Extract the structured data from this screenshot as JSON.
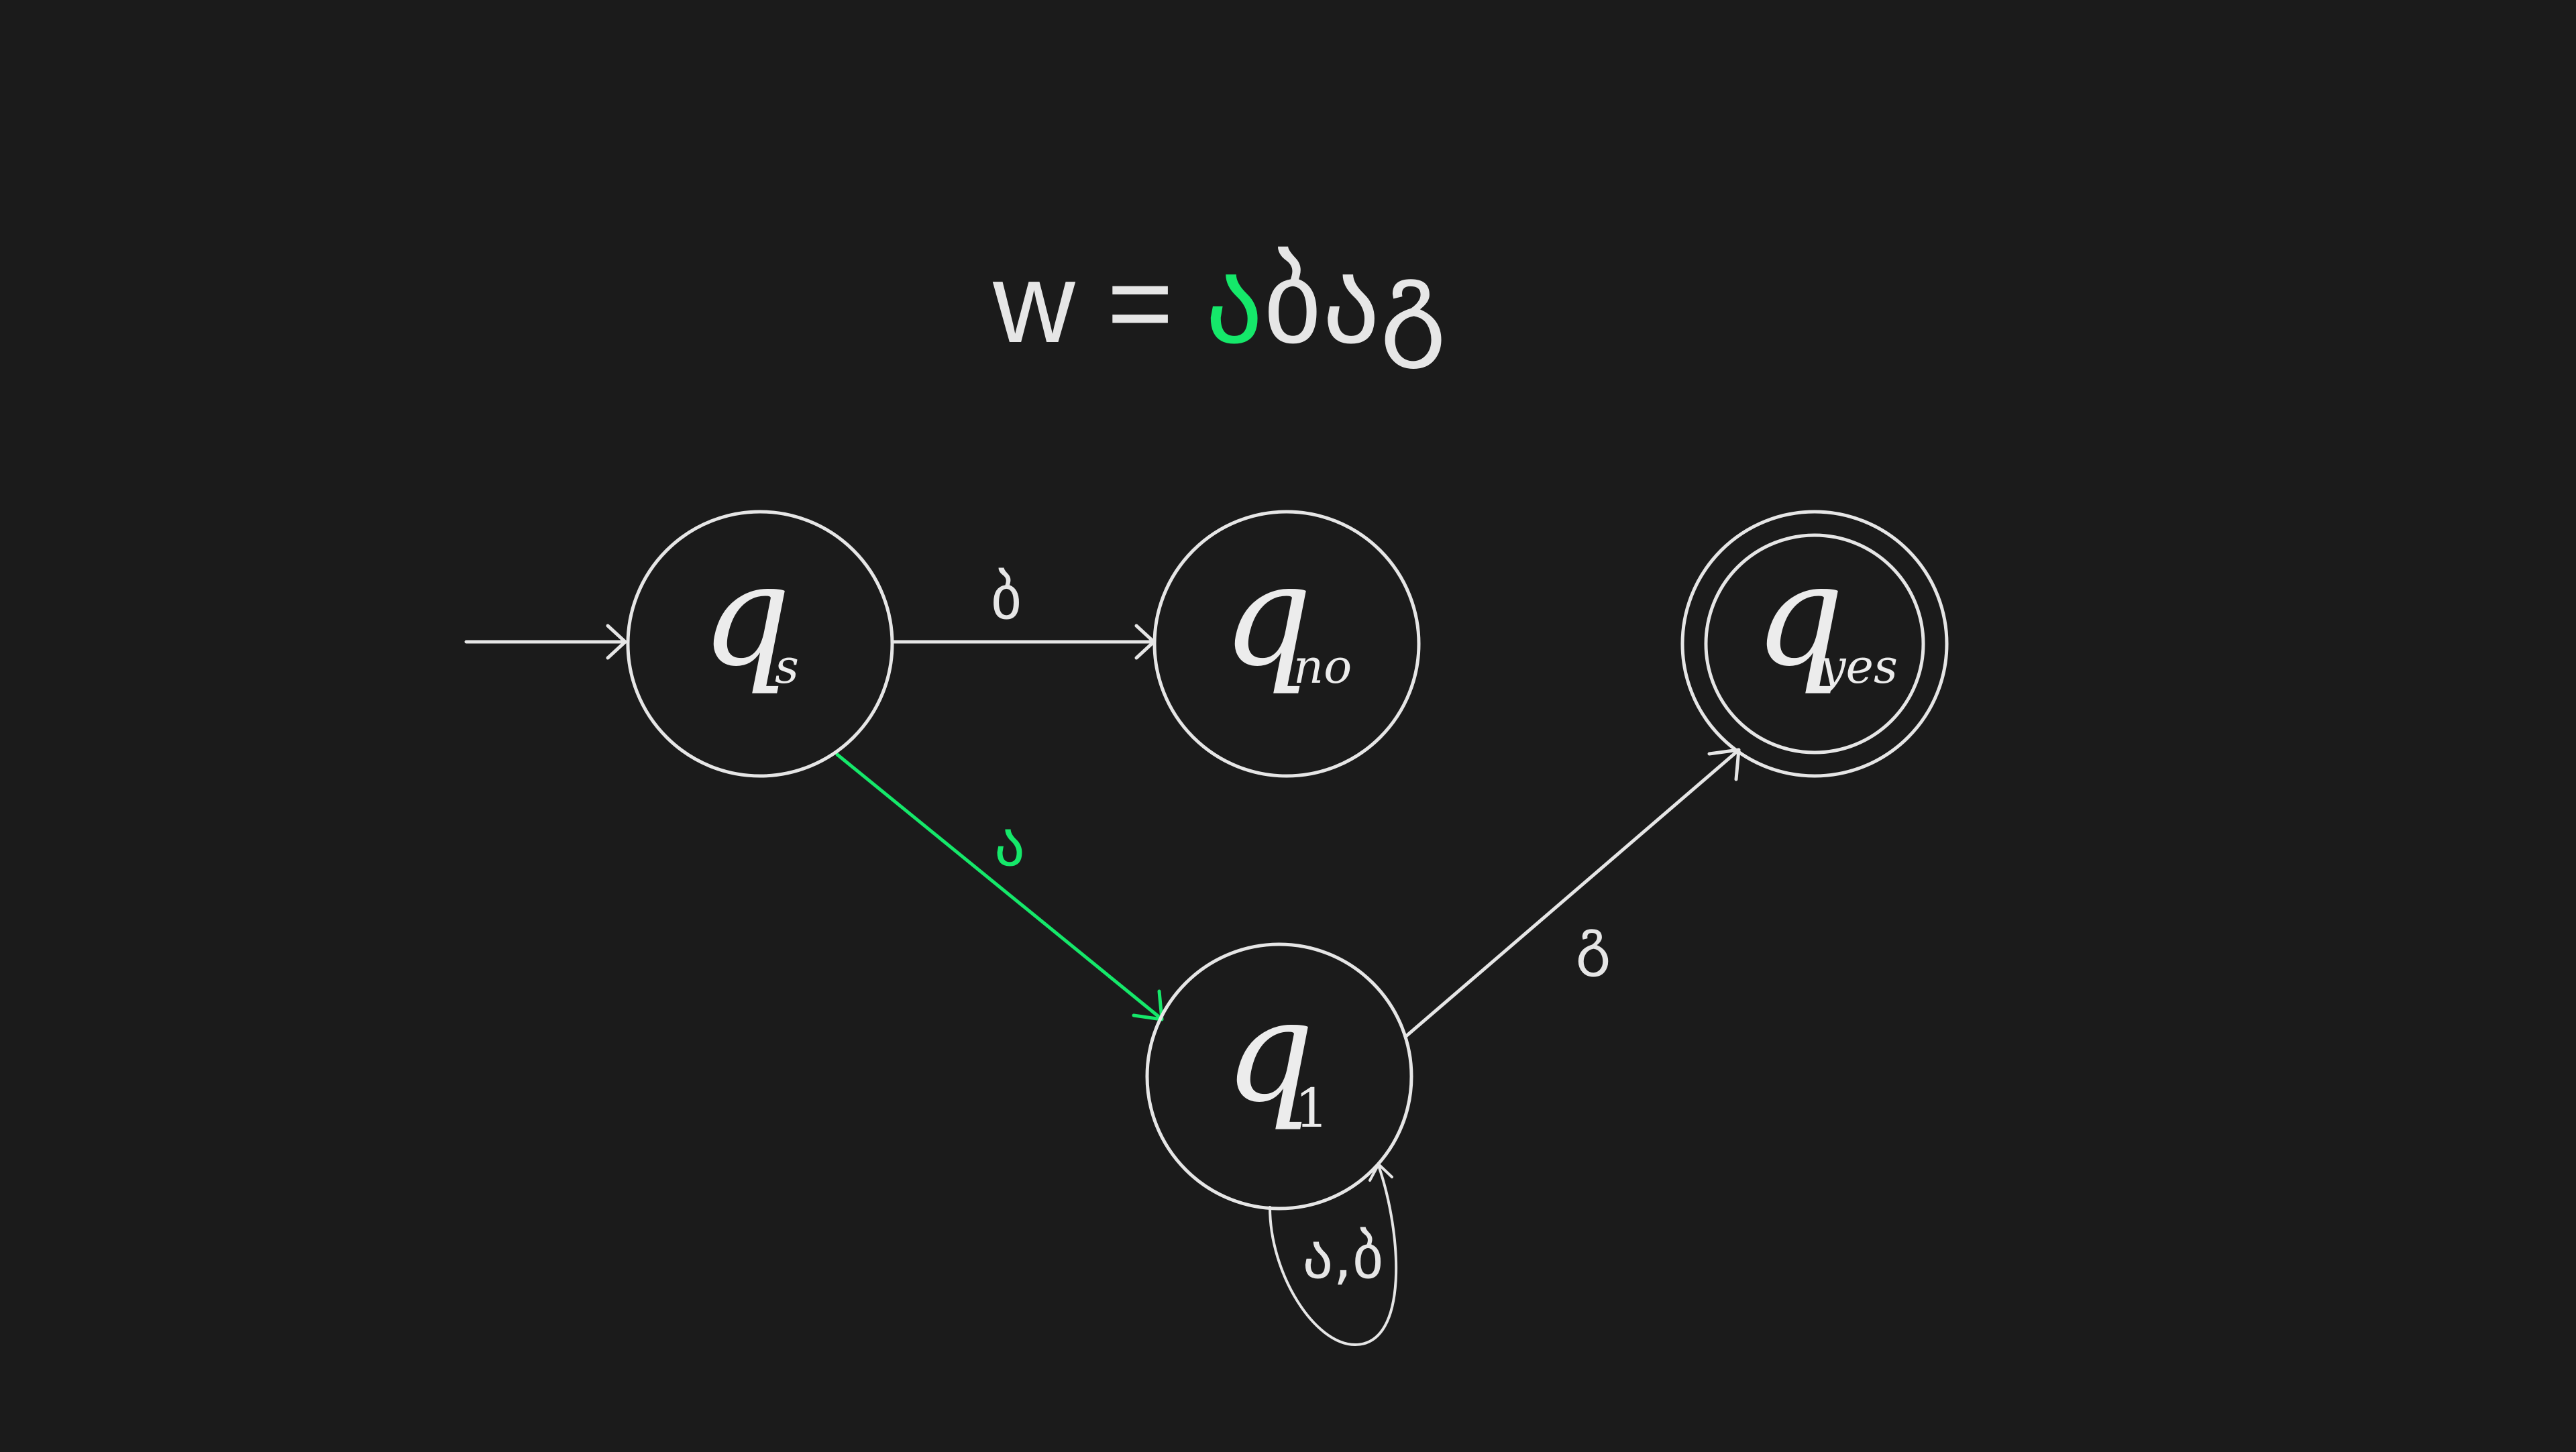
{
  "word": {
    "prefix": "w = ",
    "chars": [
      "ა",
      "ბ",
      "ა",
      "გ"
    ],
    "highlight_index": 0
  },
  "colors": {
    "background": "#1b1b1b",
    "foreground": "#e6e6e6",
    "highlight": "#15e86a"
  },
  "states": {
    "qs": {
      "symbol": "q",
      "subscript": "s",
      "accepting": false
    },
    "qno": {
      "symbol": "q",
      "subscript": "no",
      "accepting": false
    },
    "qyes": {
      "symbol": "q",
      "subscript": "yes",
      "accepting": true
    },
    "q1": {
      "symbol": "q",
      "subscript": "1",
      "accepting": false
    }
  },
  "start_state": "qs",
  "transitions": [
    {
      "from": "qs",
      "to": "qno",
      "label": "ბ",
      "highlighted": false
    },
    {
      "from": "qs",
      "to": "q1",
      "label": "ა",
      "highlighted": true
    },
    {
      "from": "q1",
      "to": "qyes",
      "label": "გ",
      "highlighted": false
    },
    {
      "from": "q1",
      "to": "q1",
      "label": "ა,ბ",
      "highlighted": false
    }
  ]
}
